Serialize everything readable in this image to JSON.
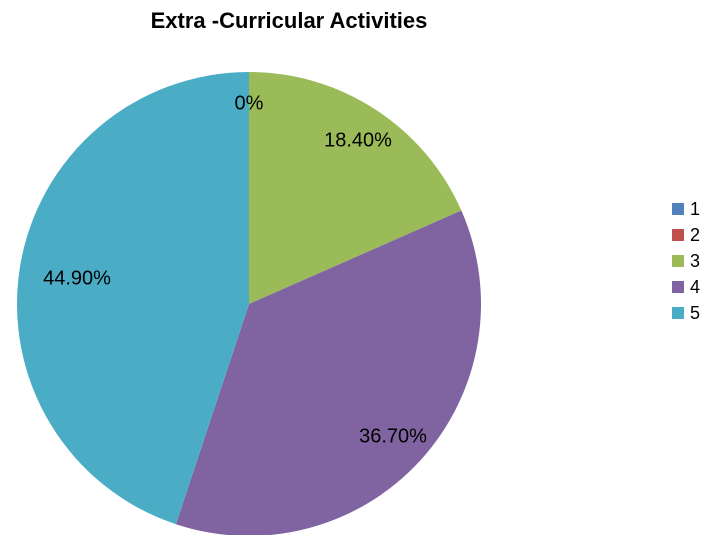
{
  "chart_data": {
    "type": "pie",
    "title": "Extra -Curricular Activities",
    "categories": [
      "1",
      "2",
      "3",
      "4",
      "5"
    ],
    "values": [
      0,
      0,
      18.4,
      36.7,
      44.9
    ],
    "data_labels": [
      "",
      "",
      "18.40%",
      "36.70%",
      "44.90%"
    ],
    "shared_zero_label": "0%",
    "colors": [
      "#4F81BD",
      "#C0504D",
      "#9BBB59",
      "#8064A2",
      "#4BACC6"
    ],
    "legend_placement": "right"
  }
}
